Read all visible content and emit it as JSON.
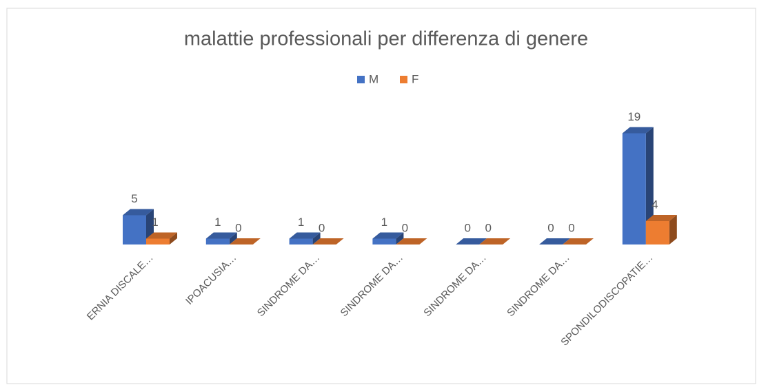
{
  "chart_data": {
    "type": "bar3d",
    "title": "malattie professionali per differenza di genere",
    "categories": [
      "ERNIA DISCALE…",
      "IPOACUSIA…",
      "SINDROME DA…",
      "SINDROME DA…",
      "SINDROME DA…",
      "SINDROME DA…",
      "SPONDILODISCOPATIE…"
    ],
    "series": [
      {
        "name": "M",
        "color": "#4472c4",
        "values": [
          5,
          1,
          1,
          1,
          0,
          0,
          19
        ]
      },
      {
        "name": "F",
        "color": "#ed7d31",
        "values": [
          1,
          0,
          0,
          0,
          0,
          0,
          4
        ]
      }
    ],
    "ylim": [
      0,
      20
    ],
    "legend": "top"
  }
}
